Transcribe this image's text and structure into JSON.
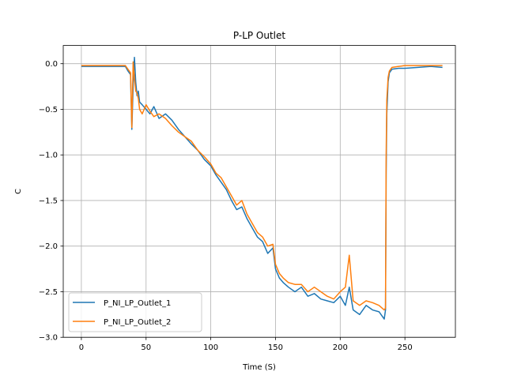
{
  "chart_data": {
    "type": "line",
    "title": "P-LP Outlet",
    "xlabel": "Time (S)",
    "ylabel": "C",
    "xlim": [
      -14,
      289
    ],
    "ylim": [
      -3.0,
      0.2
    ],
    "xticks": [
      0,
      50,
      100,
      150,
      200,
      250
    ],
    "yticks": [
      0.0,
      -0.5,
      -1.0,
      -1.5,
      -2.0,
      -2.5,
      -3.0
    ],
    "xtick_labels": [
      "0",
      "50",
      "100",
      "150",
      "200",
      "250"
    ],
    "ytick_labels": [
      "0.0",
      "−0.5",
      "−1.0",
      "−1.5",
      "−2.0",
      "−2.5",
      "−3.0"
    ],
    "grid": true,
    "legend_position": "lower-left",
    "series": [
      {
        "name": "P_NI_LP_Outlet_1",
        "color": "#1f77b4",
        "x": [
          0,
          10,
          20,
          30,
          34,
          36,
          37,
          38,
          39,
          40,
          41,
          42,
          43,
          44,
          45,
          47,
          50,
          53,
          56,
          60,
          65,
          70,
          75,
          80,
          85,
          90,
          95,
          100,
          104,
          108,
          112,
          116,
          120,
          124,
          128,
          132,
          136,
          140,
          144,
          148,
          150,
          153,
          156,
          160,
          165,
          170,
          175,
          180,
          185,
          190,
          195,
          200,
          204,
          207,
          210,
          215,
          220,
          225,
          230,
          234,
          235,
          235.5,
          236,
          237,
          238,
          240,
          245,
          250,
          260,
          270,
          279
        ],
        "y": [
          -0.03,
          -0.03,
          -0.03,
          -0.03,
          -0.03,
          -0.08,
          -0.1,
          -0.12,
          -0.72,
          -0.25,
          0.07,
          -0.2,
          -0.35,
          -0.3,
          -0.42,
          -0.45,
          -0.5,
          -0.55,
          -0.47,
          -0.6,
          -0.55,
          -0.62,
          -0.72,
          -0.8,
          -0.88,
          -0.95,
          -1.05,
          -1.12,
          -1.22,
          -1.3,
          -1.38,
          -1.5,
          -1.6,
          -1.57,
          -1.7,
          -1.8,
          -1.9,
          -1.95,
          -2.08,
          -2.02,
          -2.25,
          -2.35,
          -2.4,
          -2.45,
          -2.5,
          -2.45,
          -2.55,
          -2.52,
          -2.58,
          -2.6,
          -2.62,
          -2.55,
          -2.65,
          -2.45,
          -2.7,
          -2.75,
          -2.65,
          -2.7,
          -2.72,
          -2.8,
          -2.7,
          -1.2,
          -0.55,
          -0.2,
          -0.1,
          -0.06,
          -0.05,
          -0.05,
          -0.04,
          -0.03,
          -0.04
        ]
      },
      {
        "name": "P_NI_LP_Outlet_2",
        "color": "#ff7f0e",
        "x": [
          0,
          10,
          20,
          30,
          34,
          36,
          37,
          38,
          39,
          40,
          41,
          42,
          43,
          44,
          45,
          47,
          50,
          53,
          56,
          60,
          65,
          70,
          75,
          80,
          85,
          90,
          95,
          100,
          104,
          108,
          112,
          116,
          120,
          124,
          128,
          132,
          136,
          140,
          144,
          148,
          150,
          153,
          156,
          160,
          165,
          170,
          175,
          180,
          185,
          190,
          195,
          200,
          204,
          207,
          210,
          215,
          220,
          225,
          230,
          234,
          235,
          235.5,
          236,
          237,
          238,
          240,
          245,
          250,
          260,
          270,
          279
        ],
        "y": [
          -0.02,
          -0.02,
          -0.02,
          -0.02,
          -0.02,
          -0.06,
          -0.08,
          -0.1,
          -0.7,
          0.02,
          -0.15,
          -0.3,
          -0.32,
          -0.38,
          -0.5,
          -0.55,
          -0.45,
          -0.52,
          -0.58,
          -0.55,
          -0.6,
          -0.68,
          -0.75,
          -0.8,
          -0.85,
          -0.95,
          -1.02,
          -1.1,
          -1.2,
          -1.25,
          -1.35,
          -1.45,
          -1.55,
          -1.5,
          -1.65,
          -1.75,
          -1.85,
          -1.9,
          -2.0,
          -1.98,
          -2.2,
          -2.3,
          -2.35,
          -2.4,
          -2.42,
          -2.42,
          -2.5,
          -2.45,
          -2.5,
          -2.55,
          -2.58,
          -2.5,
          -2.45,
          -2.1,
          -2.6,
          -2.65,
          -2.6,
          -2.62,
          -2.65,
          -2.7,
          -2.68,
          -1.0,
          -0.4,
          -0.15,
          -0.08,
          -0.04,
          -0.03,
          -0.02,
          -0.02,
          -0.02,
          -0.02
        ]
      }
    ]
  }
}
